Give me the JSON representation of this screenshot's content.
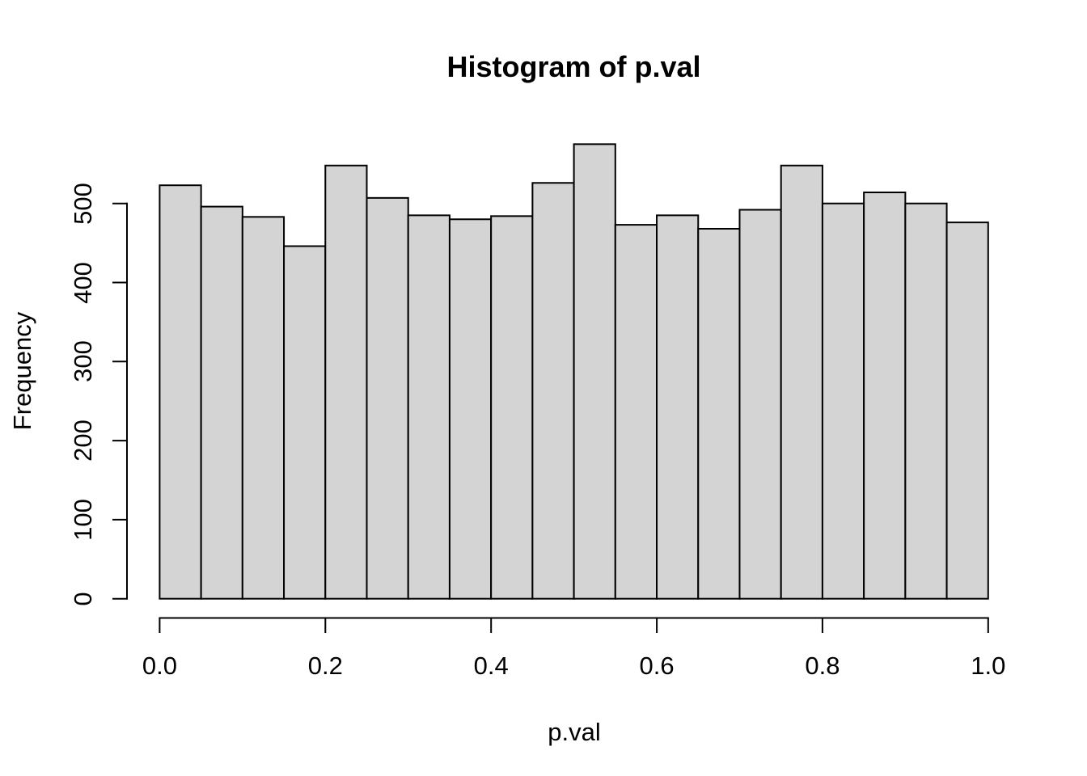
{
  "figure": {
    "title": "Histogram of p.val",
    "xlabel": "p.val",
    "ylabel": "Frequency"
  },
  "chart_data": {
    "type": "bar",
    "subtype": "histogram",
    "title": "Histogram of p.val",
    "xlabel": "p.val",
    "ylabel": "Frequency",
    "xlim": [
      0.0,
      1.0
    ],
    "ylim": [
      0,
      500
    ],
    "grid": false,
    "legend": false,
    "bin_width": 0.05,
    "bin_edges": [
      0.0,
      0.05,
      0.1,
      0.15,
      0.2,
      0.25,
      0.3,
      0.35,
      0.4,
      0.45,
      0.5,
      0.55,
      0.6,
      0.65,
      0.7,
      0.75,
      0.8,
      0.85,
      0.9,
      0.95,
      1.0
    ],
    "values": [
      523,
      496,
      483,
      446,
      548,
      507,
      485,
      480,
      484,
      526,
      575,
      473,
      485,
      468,
      492,
      548,
      500,
      514,
      500,
      476
    ],
    "x_tick_labels": [
      "0.0",
      "0.2",
      "0.4",
      "0.6",
      "0.8",
      "1.0"
    ],
    "y_tick_labels": [
      "0",
      "100",
      "200",
      "300",
      "400",
      "500"
    ],
    "colors": {
      "bar_fill": "#D4D4D4",
      "bar_border": "#000000",
      "axis": "#000000",
      "text": "#000000",
      "background": "#FFFFFF"
    }
  }
}
